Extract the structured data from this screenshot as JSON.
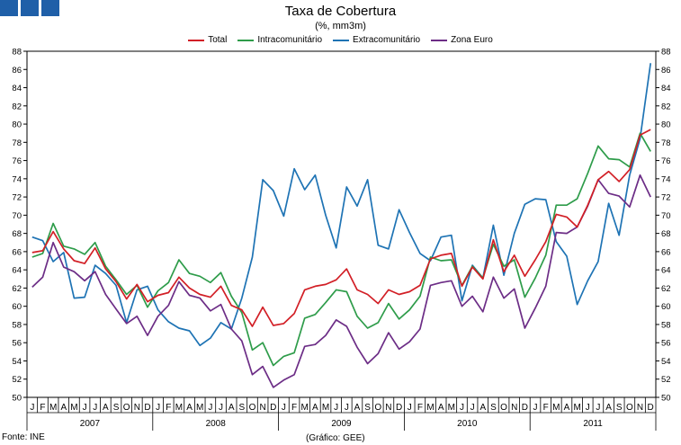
{
  "header": {
    "logo_colors": [
      "#1f5fa8",
      "#1f5fa8",
      "#1f5fa8",
      "#1f5fa8"
    ]
  },
  "footer": {
    "source": "Fonte: INE",
    "credit": "(Gráfico: GEE)"
  },
  "chart_data": {
    "type": "line",
    "title": "Taxa de Cobertura",
    "subtitle": "(%, mm3m)",
    "xlabel": "",
    "ylabel": "",
    "ylim": [
      50,
      88
    ],
    "yticks": [
      50,
      52,
      54,
      56,
      58,
      60,
      62,
      64,
      66,
      68,
      70,
      72,
      74,
      76,
      78,
      80,
      82,
      84,
      86,
      88
    ],
    "grid": false,
    "legend_position": "top",
    "month_labels": [
      "J",
      "F",
      "M",
      "A",
      "M",
      "J",
      "J",
      "A",
      "S",
      "O",
      "N",
      "D"
    ],
    "years": [
      "2007",
      "2008",
      "2009",
      "2010",
      "2011"
    ],
    "series": [
      {
        "name": "Total",
        "color": "#d21f26",
        "values": [
          65.9,
          66.1,
          68.2,
          66.3,
          65.0,
          64.7,
          66.4,
          64.1,
          62.7,
          60.8,
          62.4,
          60.5,
          61.2,
          61.5,
          63.2,
          62.0,
          61.3,
          61.0,
          62.2,
          60.1,
          59.6,
          57.8,
          59.9,
          57.9,
          58.1,
          59.2,
          61.8,
          62.2,
          62.4,
          62.9,
          64.1,
          61.8,
          61.3,
          60.3,
          61.8,
          61.3,
          61.6,
          62.3,
          65.2,
          65.6,
          65.8,
          62.2,
          64.3,
          63.0,
          67.3,
          63.8,
          65.6,
          63.3,
          65.1,
          67.1,
          70.1,
          69.8,
          68.7,
          71.1,
          73.9,
          74.8,
          73.7,
          75.0,
          78.8,
          79.4
        ]
      },
      {
        "name": "Intracomunitário",
        "color": "#2e9c4a",
        "values": [
          65.4,
          65.8,
          69.1,
          66.6,
          66.3,
          65.7,
          67.0,
          64.4,
          62.9,
          61.3,
          62.3,
          59.9,
          61.7,
          62.6,
          65.1,
          63.6,
          63.3,
          62.6,
          63.7,
          61.1,
          59.3,
          55.2,
          56.0,
          53.5,
          54.5,
          54.9,
          58.7,
          59.1,
          60.4,
          61.8,
          61.6,
          58.9,
          57.6,
          58.2,
          60.3,
          58.6,
          59.6,
          61.1,
          65.4,
          65.0,
          65.1,
          62.3,
          64.4,
          63.1,
          66.8,
          64.4,
          65.1,
          61.0,
          63.1,
          65.6,
          71.1,
          71.1,
          71.8,
          74.6,
          77.6,
          76.2,
          76.1,
          75.3,
          79.0,
          77.0
        ]
      },
      {
        "name": "Extracomunitário",
        "color": "#1e73b4",
        "values": [
          67.6,
          67.2,
          64.9,
          65.9,
          60.9,
          61.0,
          64.5,
          63.6,
          62.3,
          58.2,
          61.8,
          62.2,
          59.6,
          58.3,
          57.6,
          57.3,
          55.7,
          56.5,
          58.2,
          57.5,
          60.9,
          65.4,
          73.9,
          72.7,
          69.9,
          75.1,
          72.8,
          74.4,
          70.0,
          66.4,
          73.1,
          71.0,
          73.9,
          66.7,
          66.3,
          70.6,
          68.1,
          65.8,
          65.0,
          67.6,
          67.8,
          60.6,
          64.5,
          63.1,
          68.9,
          63.4,
          68.0,
          71.2,
          71.8,
          71.7,
          67.1,
          65.5,
          60.2,
          62.8,
          64.9,
          71.3,
          67.8,
          74.4,
          78.4,
          86.7
        ]
      },
      {
        "name": "Zona Euro",
        "color": "#6c2d86",
        "values": [
          62.1,
          63.2,
          67.0,
          64.3,
          63.8,
          62.8,
          63.8,
          61.3,
          59.7,
          58.1,
          58.9,
          56.8,
          58.9,
          60.1,
          62.7,
          61.2,
          60.9,
          59.5,
          60.2,
          57.5,
          56.2,
          52.5,
          53.4,
          51.1,
          51.9,
          52.5,
          55.6,
          55.8,
          56.8,
          58.5,
          57.8,
          55.5,
          53.7,
          54.8,
          57.1,
          55.3,
          56.1,
          57.5,
          62.3,
          62.6,
          62.8,
          60.0,
          61.1,
          59.4,
          63.2,
          60.9,
          61.9,
          57.6,
          59.8,
          62.2,
          68.1,
          68.0,
          68.7,
          71.0,
          73.9,
          72.4,
          72.1,
          70.9,
          74.4,
          72.0
        ]
      }
    ]
  }
}
